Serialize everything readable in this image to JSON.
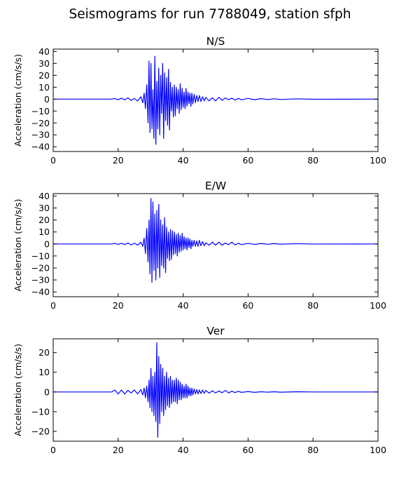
{
  "figure": {
    "title": "Seismograms for run 7788049, station sfph"
  },
  "chart_data": [
    {
      "type": "line",
      "title": "N/S",
      "xlabel": "",
      "ylabel": "Acceleration (cm/s/s)",
      "xlim": [
        0,
        100
      ],
      "ylim": [
        -44,
        42
      ],
      "xticks": [
        0,
        20,
        40,
        60,
        80,
        100
      ],
      "yticks": [
        -40,
        -30,
        -20,
        -10,
        0,
        10,
        20,
        30,
        40
      ],
      "grid": false,
      "color": "#0000ff",
      "series": [
        {
          "x": [
            0,
            18,
            19,
            20,
            21,
            22,
            23,
            24,
            25,
            26,
            27,
            27.6,
            28.0,
            28.4,
            28.8,
            29.2,
            29.5,
            29.8,
            30.1,
            30.4,
            30.7,
            31.0,
            31.3,
            31.6,
            31.9,
            32.2,
            32.5,
            32.8,
            33.1,
            33.4,
            33.7,
            34.0,
            34.3,
            34.6,
            34.9,
            35.2,
            35.5,
            35.8,
            36.1,
            36.4,
            36.7,
            37.0,
            37.3,
            37.6,
            37.9,
            38.2,
            38.5,
            38.8,
            39.1,
            39.4,
            39.7,
            40.0,
            40.3,
            40.6,
            40.9,
            41.2,
            41.5,
            41.8,
            42.1,
            42.4,
            42.7,
            43.0,
            43.4,
            43.8,
            44.2,
            44.6,
            45.0,
            45.5,
            46.0,
            46.5,
            47.0,
            48,
            49,
            50,
            51,
            52,
            53,
            54,
            55,
            56,
            57,
            58,
            60,
            62,
            64,
            66,
            68,
            70,
            75,
            80,
            100
          ],
          "y": [
            0,
            0,
            0.5,
            -0.5,
            0.8,
            -0.6,
            1,
            -1,
            0.5,
            -1.5,
            2,
            -3,
            5,
            -8,
            12,
            -20,
            32,
            -28,
            30,
            -25,
            8,
            -33,
            36,
            -38,
            15,
            -25,
            26,
            -30,
            20,
            -12,
            30,
            -33,
            22,
            -18,
            18,
            -22,
            25,
            -26,
            14,
            -10,
            10,
            -15,
            12,
            -14,
            10,
            -8,
            8,
            -12,
            13,
            -9,
            9,
            -7,
            6,
            -8,
            9,
            -6,
            6,
            -4,
            5,
            -6,
            5,
            -4,
            4,
            -3,
            3,
            -2,
            3,
            -2,
            2,
            -1.5,
            1.5,
            -1.5,
            1,
            -1.5,
            1.5,
            -1,
            1,
            -0.5,
            0.8,
            -0.8,
            0.6,
            -0.6,
            0.6,
            -0.5,
            0.4,
            -0.4,
            0.3,
            -0.3,
            0.2,
            -0.1,
            0
          ]
        }
      ]
    },
    {
      "type": "line",
      "title": "E/W",
      "xlabel": "",
      "ylabel": "Acceleration (cm/s/s)",
      "xlim": [
        0,
        100
      ],
      "ylim": [
        -44,
        42
      ],
      "xticks": [
        0,
        20,
        40,
        60,
        80,
        100
      ],
      "yticks": [
        -40,
        -30,
        -20,
        -10,
        0,
        10,
        20,
        30,
        40
      ],
      "grid": false,
      "color": "#0000ff",
      "series": [
        {
          "x": [
            0,
            18,
            19,
            20,
            21,
            22,
            23,
            24,
            25,
            26,
            27,
            27.6,
            28.0,
            28.4,
            28.8,
            29.2,
            29.5,
            29.8,
            30.1,
            30.4,
            30.7,
            31.0,
            31.3,
            31.6,
            31.9,
            32.2,
            32.5,
            32.8,
            33.1,
            33.4,
            33.7,
            34.0,
            34.3,
            34.6,
            34.9,
            35.2,
            35.5,
            35.8,
            36.1,
            36.4,
            36.7,
            37.0,
            37.3,
            37.6,
            37.9,
            38.2,
            38.5,
            38.8,
            39.1,
            39.4,
            39.7,
            40.0,
            40.3,
            40.6,
            40.9,
            41.2,
            41.5,
            41.8,
            42.1,
            42.4,
            42.7,
            43.0,
            43.4,
            43.8,
            44.2,
            44.6,
            45.0,
            45.5,
            46.0,
            46.5,
            47.0,
            48,
            49,
            50,
            51,
            52,
            53,
            54,
            55,
            56,
            57,
            58,
            60,
            62,
            64,
            66,
            68,
            70,
            75,
            80,
            100
          ],
          "y": [
            0,
            0,
            0.5,
            -0.4,
            0.6,
            -0.5,
            0.8,
            -0.8,
            0.6,
            -1,
            1.5,
            -2,
            5,
            -8,
            13,
            -15,
            20,
            -25,
            38,
            -32,
            35,
            -22,
            25,
            -30,
            28,
            -20,
            33,
            -28,
            20,
            -18,
            16,
            -20,
            22,
            -24,
            14,
            -12,
            10,
            -14,
            12,
            -13,
            11,
            -9,
            10,
            -8,
            8,
            -10,
            9,
            -7,
            7,
            -6,
            9,
            -5,
            6,
            -4,
            5,
            -5,
            5,
            -3,
            4,
            -4,
            3,
            -2,
            3,
            -2,
            2.5,
            -2,
            3,
            -1.5,
            2,
            -1.5,
            1,
            -1,
            1.5,
            -1,
            1.5,
            -1,
            0.8,
            -0.6,
            1.5,
            -0.8,
            0.6,
            -0.6,
            0.5,
            -0.4,
            0.4,
            -0.3,
            0.3,
            -0.2,
            0.2,
            -0.1,
            0
          ]
        }
      ]
    },
    {
      "type": "line",
      "title": "Ver",
      "xlabel": "",
      "ylabel": "Acceleration (cm/s/s)",
      "xlim": [
        0,
        100
      ],
      "ylim": [
        -25,
        27
      ],
      "xticks": [
        0,
        20,
        40,
        60,
        80,
        100
      ],
      "yticks": [
        -20,
        -10,
        0,
        10,
        20
      ],
      "grid": false,
      "color": "#0000ff",
      "series": [
        {
          "x": [
            0,
            18,
            19,
            20,
            21,
            22,
            23,
            24,
            25,
            26,
            27,
            27.6,
            28.0,
            28.4,
            28.8,
            29.2,
            29.5,
            29.8,
            30.1,
            30.4,
            30.7,
            31.0,
            31.3,
            31.6,
            31.9,
            32.2,
            32.5,
            32.8,
            33.1,
            33.4,
            33.7,
            34.0,
            34.3,
            34.6,
            34.9,
            35.2,
            35.5,
            35.8,
            36.1,
            36.4,
            36.7,
            37.0,
            37.3,
            37.6,
            37.9,
            38.2,
            38.5,
            38.8,
            39.1,
            39.4,
            39.7,
            40.0,
            40.3,
            40.6,
            40.9,
            41.2,
            41.5,
            41.8,
            42.1,
            42.4,
            42.7,
            43.0,
            43.4,
            43.8,
            44.2,
            44.6,
            45.0,
            45.5,
            46.0,
            46.5,
            47.0,
            48,
            49,
            50,
            51,
            52,
            53,
            54,
            55,
            56,
            57,
            58,
            60,
            62,
            64,
            66,
            68,
            70,
            75,
            80,
            100
          ],
          "y": [
            0,
            0,
            1,
            -1,
            1,
            -1,
            0.8,
            -0.5,
            1,
            -1,
            1.2,
            -1.5,
            2,
            -3,
            3,
            -5,
            6,
            -8,
            12,
            -10,
            8,
            -12,
            10,
            -15,
            25,
            -23,
            18,
            -16,
            14,
            -10,
            12,
            -12,
            8,
            -9,
            10,
            -7,
            7,
            -8,
            8,
            -6,
            6,
            -5,
            6,
            -5,
            7,
            -6,
            6,
            -4,
            5,
            -4,
            4,
            -3,
            3,
            -3,
            4,
            -3,
            3,
            -2,
            2,
            -2,
            2,
            -1.5,
            1.5,
            -1,
            1.2,
            -1,
            1,
            -0.8,
            1,
            -0.7,
            0.8,
            -0.6,
            0.6,
            -0.5,
            0.5,
            -0.4,
            0.8,
            -0.5,
            0.4,
            -0.3,
            0.3,
            -0.2,
            0.2,
            -0.2,
            0.1,
            -0.1,
            0.1,
            -0.1,
            0.1,
            0,
            0
          ]
        }
      ]
    }
  ]
}
